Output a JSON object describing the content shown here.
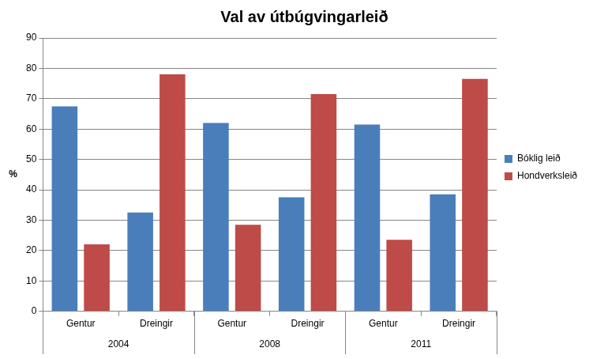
{
  "chart_data": {
    "type": "bar",
    "title": "Val av útbúgvingarleið",
    "y_label": "%",
    "categories": [
      "Gentur",
      "Dreingir",
      "Gentur",
      "Dreingir",
      "Gentur",
      "Dreingir"
    ],
    "groups": [
      "2004",
      "2008",
      "2011"
    ],
    "series": [
      {
        "name": "Bóklig leið",
        "color": "#4a7ebb",
        "values": [
          67.5,
          32.5,
          62,
          37.5,
          61.5,
          38.5
        ]
      },
      {
        "name": "Hondverksleið",
        "color": "#be4b48",
        "values": [
          22,
          78,
          28.5,
          71.5,
          23.5,
          76.5
        ]
      }
    ],
    "ylim": [
      0,
      90
    ],
    "yticks": [
      0,
      10,
      20,
      30,
      40,
      50,
      60,
      70,
      80,
      90
    ],
    "grid": true,
    "legend": "right"
  }
}
